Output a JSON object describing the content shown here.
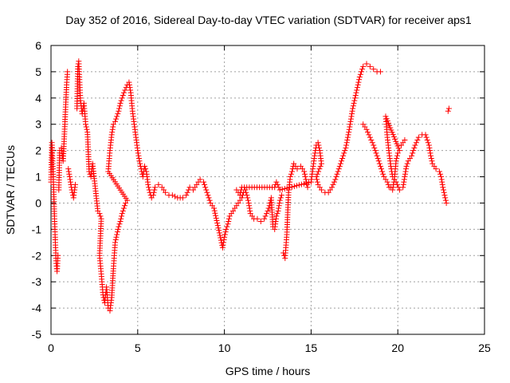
{
  "chart_data": {
    "type": "scatter",
    "title": "Day 352 of 2016, Sidereal Day-to-day VTEC variation (SDTVAR) for receiver aps1",
    "xlabel": "GPS time / hours",
    "ylabel": "SDTVAR / TECUs",
    "xlim": [
      0,
      25
    ],
    "ylim": [
      -5,
      6
    ],
    "xticks": [
      0,
      5,
      10,
      15,
      20,
      25
    ],
    "yticks": [
      -5,
      -4,
      -3,
      -2,
      -1,
      0,
      1,
      2,
      3,
      4,
      5,
      6
    ],
    "grid": true,
    "marker": "+",
    "series": [
      {
        "color": "#ff0000",
        "points": [
          [
            0.0,
            0.8
          ],
          [
            0.05,
            2.3
          ],
          [
            0.1,
            1.5
          ],
          [
            0.15,
            0.6
          ],
          [
            0.2,
            -0.5
          ],
          [
            0.25,
            -1.5
          ],
          [
            0.3,
            -2.3
          ],
          [
            0.35,
            -2.6
          ],
          [
            0.4,
            -2.0
          ],
          [
            0.45,
            0.5
          ],
          [
            0.5,
            2.0
          ],
          [
            0.6,
            2.1
          ],
          [
            0.7,
            1.6
          ],
          [
            0.8,
            3.0
          ],
          [
            0.9,
            4.5
          ],
          [
            0.95,
            5.0
          ],
          [
            1.0,
            1.3
          ],
          [
            1.1,
            0.9
          ],
          [
            1.2,
            0.5
          ],
          [
            1.3,
            0.2
          ],
          [
            1.4,
            0.7
          ],
          [
            1.5,
            3.6
          ],
          [
            1.55,
            5.2
          ],
          [
            1.6,
            5.4
          ],
          [
            1.65,
            4.6
          ],
          [
            1.7,
            3.9
          ],
          [
            1.8,
            3.4
          ],
          [
            1.9,
            3.8
          ],
          [
            2.0,
            3.0
          ],
          [
            2.1,
            2.7
          ],
          [
            2.2,
            1.2
          ],
          [
            2.3,
            1.0
          ],
          [
            2.4,
            1.5
          ],
          [
            2.7,
            -0.3
          ],
          [
            2.8,
            -0.4
          ],
          [
            2.9,
            -0.6
          ],
          [
            2.8,
            -2.0
          ],
          [
            2.9,
            -2.7
          ],
          [
            3.0,
            -3.5
          ],
          [
            3.1,
            -3.8
          ],
          [
            3.2,
            -3.2
          ],
          [
            3.3,
            -4.0
          ],
          [
            3.4,
            -4.1
          ],
          [
            3.5,
            -3.6
          ],
          [
            3.6,
            -2.5
          ],
          [
            3.7,
            -1.5
          ],
          [
            3.8,
            -1.2
          ],
          [
            3.9,
            -0.9
          ],
          [
            4.0,
            -0.7
          ],
          [
            4.1,
            -0.4
          ],
          [
            4.2,
            -0.2
          ],
          [
            4.3,
            0.0
          ],
          [
            4.4,
            0.1
          ],
          [
            3.3,
            1.2
          ],
          [
            3.4,
            2.0
          ],
          [
            3.5,
            2.6
          ],
          [
            3.6,
            3.0
          ],
          [
            3.7,
            3.1
          ],
          [
            3.8,
            3.3
          ],
          [
            3.9,
            3.5
          ],
          [
            4.0,
            3.8
          ],
          [
            4.2,
            4.2
          ],
          [
            4.4,
            4.5
          ],
          [
            4.5,
            4.6
          ],
          [
            4.6,
            4.2
          ],
          [
            4.7,
            3.5
          ],
          [
            4.8,
            3.0
          ],
          [
            4.9,
            2.5
          ],
          [
            5.0,
            2.0
          ],
          [
            5.1,
            1.6
          ],
          [
            5.2,
            1.3
          ],
          [
            5.3,
            1.0
          ],
          [
            5.4,
            1.4
          ],
          [
            5.5,
            1.2
          ],
          [
            5.6,
            0.7
          ],
          [
            5.7,
            0.4
          ],
          [
            5.8,
            0.2
          ],
          [
            5.9,
            0.3
          ],
          [
            6.0,
            0.6
          ],
          [
            6.2,
            0.7
          ],
          [
            6.4,
            0.6
          ],
          [
            6.6,
            0.4
          ],
          [
            6.8,
            0.3
          ],
          [
            7.0,
            0.3
          ],
          [
            7.3,
            0.2
          ],
          [
            7.6,
            0.2
          ],
          [
            7.8,
            0.3
          ],
          [
            8.0,
            0.6
          ],
          [
            8.2,
            0.5
          ],
          [
            8.4,
            0.7
          ],
          [
            8.6,
            0.9
          ],
          [
            8.8,
            0.8
          ],
          [
            9.0,
            0.4
          ],
          [
            9.2,
            0.0
          ],
          [
            9.4,
            -0.2
          ],
          [
            9.9,
            -1.7
          ],
          [
            10.0,
            -1.3
          ],
          [
            10.1,
            -1.0
          ],
          [
            10.2,
            -0.8
          ],
          [
            10.3,
            -0.5
          ],
          [
            10.4,
            -0.4
          ],
          [
            10.6,
            -0.2
          ],
          [
            10.8,
            0.0
          ],
          [
            11.0,
            0.2
          ],
          [
            11.1,
            0.4
          ],
          [
            11.2,
            0.5
          ],
          [
            11.3,
            0.3
          ],
          [
            11.4,
            0.0
          ],
          [
            11.5,
            -0.4
          ],
          [
            11.7,
            -0.6
          ],
          [
            11.9,
            -0.6
          ],
          [
            12.1,
            -0.7
          ],
          [
            12.3,
            -0.6
          ],
          [
            12.5,
            -0.3
          ],
          [
            12.6,
            -0.1
          ],
          [
            12.7,
            0.2
          ],
          [
            12.8,
            -0.9
          ],
          [
            12.9,
            -1.0
          ],
          [
            13.0,
            -0.5
          ],
          [
            13.1,
            -0.3
          ],
          [
            13.2,
            0.1
          ],
          [
            13.3,
            0.3
          ],
          [
            13.4,
            -1.9
          ],
          [
            13.5,
            -2.1
          ],
          [
            13.6,
            -1.2
          ],
          [
            13.7,
            0.4
          ],
          [
            13.8,
            1.0
          ],
          [
            13.9,
            1.2
          ],
          [
            14.0,
            1.5
          ],
          [
            14.2,
            1.3
          ],
          [
            14.4,
            1.4
          ],
          [
            14.6,
            1.2
          ],
          [
            14.7,
            0.9
          ],
          [
            14.8,
            0.6
          ],
          [
            10.7,
            0.5
          ],
          [
            10.9,
            0.3
          ],
          [
            11.0,
            0.6
          ],
          [
            12.9,
            0.6
          ],
          [
            13.0,
            0.8
          ],
          [
            13.2,
            0.5
          ],
          [
            15.0,
            0.8
          ],
          [
            15.1,
            1.3
          ],
          [
            15.2,
            1.8
          ],
          [
            15.3,
            2.2
          ],
          [
            15.4,
            2.3
          ],
          [
            15.5,
            2.0
          ],
          [
            15.6,
            1.5
          ],
          [
            15.3,
            1.0
          ],
          [
            15.4,
            0.7
          ],
          [
            15.6,
            0.5
          ],
          [
            15.8,
            0.4
          ],
          [
            16.0,
            0.4
          ],
          [
            16.2,
            0.6
          ],
          [
            16.4,
            0.9
          ],
          [
            16.6,
            1.3
          ],
          [
            16.8,
            1.7
          ],
          [
            17.0,
            2.1
          ],
          [
            17.2,
            2.8
          ],
          [
            17.4,
            3.6
          ],
          [
            17.6,
            4.2
          ],
          [
            17.8,
            4.8
          ],
          [
            18.0,
            5.2
          ],
          [
            18.2,
            5.3
          ],
          [
            18.4,
            5.2
          ],
          [
            18.6,
            5.1
          ],
          [
            18.8,
            5.0
          ],
          [
            19.0,
            5.0
          ],
          [
            18.0,
            3.0
          ],
          [
            18.2,
            2.8
          ],
          [
            18.4,
            2.5
          ],
          [
            18.6,
            2.2
          ],
          [
            18.8,
            1.8
          ],
          [
            19.0,
            1.4
          ],
          [
            19.2,
            1.0
          ],
          [
            19.4,
            0.8
          ],
          [
            19.5,
            0.6
          ],
          [
            19.6,
            0.6
          ],
          [
            19.7,
            0.5
          ],
          [
            19.8,
            0.9
          ],
          [
            19.9,
            1.6
          ],
          [
            20.0,
            1.9
          ],
          [
            20.1,
            2.0
          ],
          [
            19.3,
            3.3
          ],
          [
            19.4,
            2.5
          ],
          [
            19.5,
            1.9
          ],
          [
            19.6,
            1.4
          ],
          [
            19.7,
            1.0
          ],
          [
            19.9,
            0.8
          ],
          [
            20.1,
            0.5
          ],
          [
            20.3,
            0.6
          ],
          [
            20.4,
            1.0
          ],
          [
            20.5,
            1.4
          ],
          [
            20.6,
            1.6
          ],
          [
            20.8,
            1.8
          ],
          [
            21.0,
            2.2
          ],
          [
            21.2,
            2.5
          ],
          [
            21.4,
            2.6
          ],
          [
            21.6,
            2.6
          ],
          [
            21.8,
            2.2
          ],
          [
            21.9,
            1.8
          ],
          [
            22.0,
            1.5
          ],
          [
            22.2,
            1.3
          ],
          [
            22.4,
            1.2
          ],
          [
            22.5,
            1.0
          ],
          [
            22.6,
            0.6
          ],
          [
            22.7,
            0.3
          ],
          [
            22.8,
            0.0
          ],
          [
            20.2,
            2.2
          ],
          [
            20.4,
            2.4
          ],
          [
            22.9,
            3.5
          ],
          [
            22.95,
            3.6
          ]
        ]
      }
    ]
  }
}
